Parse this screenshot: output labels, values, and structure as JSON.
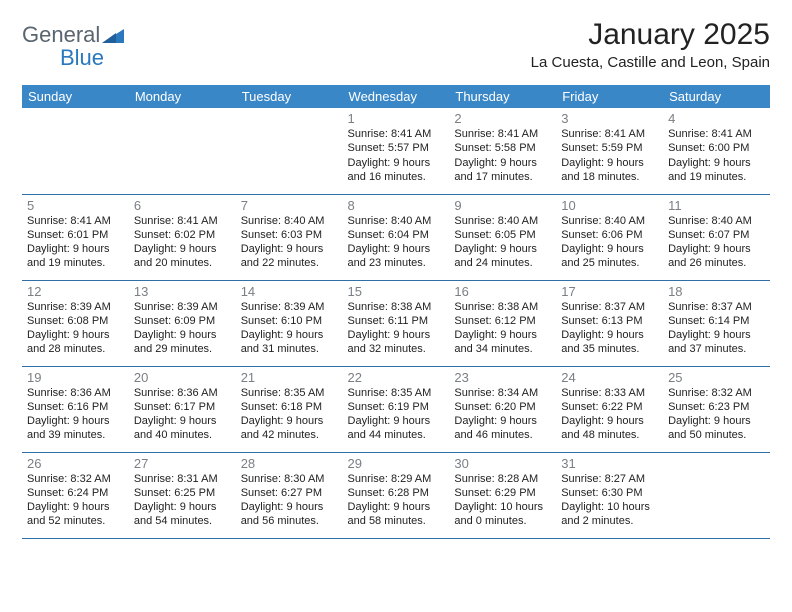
{
  "logo": {
    "part1": "General",
    "part2": "Blue"
  },
  "title": "January 2025",
  "location": "La Cuesta, Castille and Leon, Spain",
  "colors": {
    "header_bg": "#3a87c8",
    "header_fg": "#ffffff",
    "row_border": "#2f6fa8",
    "daynum": "#7a7f85",
    "logo_gray": "#5a6570",
    "logo_blue": "#2a78bd"
  },
  "weekdays": [
    "Sunday",
    "Monday",
    "Tuesday",
    "Wednesday",
    "Thursday",
    "Friday",
    "Saturday"
  ],
  "weeks": [
    [
      null,
      null,
      null,
      {
        "day": "1",
        "sunrise": "8:41 AM",
        "sunset": "5:57 PM",
        "dl1": "Daylight: 9 hours",
        "dl2": "and 16 minutes."
      },
      {
        "day": "2",
        "sunrise": "8:41 AM",
        "sunset": "5:58 PM",
        "dl1": "Daylight: 9 hours",
        "dl2": "and 17 minutes."
      },
      {
        "day": "3",
        "sunrise": "8:41 AM",
        "sunset": "5:59 PM",
        "dl1": "Daylight: 9 hours",
        "dl2": "and 18 minutes."
      },
      {
        "day": "4",
        "sunrise": "8:41 AM",
        "sunset": "6:00 PM",
        "dl1": "Daylight: 9 hours",
        "dl2": "and 19 minutes."
      }
    ],
    [
      {
        "day": "5",
        "sunrise": "8:41 AM",
        "sunset": "6:01 PM",
        "dl1": "Daylight: 9 hours",
        "dl2": "and 19 minutes."
      },
      {
        "day": "6",
        "sunrise": "8:41 AM",
        "sunset": "6:02 PM",
        "dl1": "Daylight: 9 hours",
        "dl2": "and 20 minutes."
      },
      {
        "day": "7",
        "sunrise": "8:40 AM",
        "sunset": "6:03 PM",
        "dl1": "Daylight: 9 hours",
        "dl2": "and 22 minutes."
      },
      {
        "day": "8",
        "sunrise": "8:40 AM",
        "sunset": "6:04 PM",
        "dl1": "Daylight: 9 hours",
        "dl2": "and 23 minutes."
      },
      {
        "day": "9",
        "sunrise": "8:40 AM",
        "sunset": "6:05 PM",
        "dl1": "Daylight: 9 hours",
        "dl2": "and 24 minutes."
      },
      {
        "day": "10",
        "sunrise": "8:40 AM",
        "sunset": "6:06 PM",
        "dl1": "Daylight: 9 hours",
        "dl2": "and 25 minutes."
      },
      {
        "day": "11",
        "sunrise": "8:40 AM",
        "sunset": "6:07 PM",
        "dl1": "Daylight: 9 hours",
        "dl2": "and 26 minutes."
      }
    ],
    [
      {
        "day": "12",
        "sunrise": "8:39 AM",
        "sunset": "6:08 PM",
        "dl1": "Daylight: 9 hours",
        "dl2": "and 28 minutes."
      },
      {
        "day": "13",
        "sunrise": "8:39 AM",
        "sunset": "6:09 PM",
        "dl1": "Daylight: 9 hours",
        "dl2": "and 29 minutes."
      },
      {
        "day": "14",
        "sunrise": "8:39 AM",
        "sunset": "6:10 PM",
        "dl1": "Daylight: 9 hours",
        "dl2": "and 31 minutes."
      },
      {
        "day": "15",
        "sunrise": "8:38 AM",
        "sunset": "6:11 PM",
        "dl1": "Daylight: 9 hours",
        "dl2": "and 32 minutes."
      },
      {
        "day": "16",
        "sunrise": "8:38 AM",
        "sunset": "6:12 PM",
        "dl1": "Daylight: 9 hours",
        "dl2": "and 34 minutes."
      },
      {
        "day": "17",
        "sunrise": "8:37 AM",
        "sunset": "6:13 PM",
        "dl1": "Daylight: 9 hours",
        "dl2": "and 35 minutes."
      },
      {
        "day": "18",
        "sunrise": "8:37 AM",
        "sunset": "6:14 PM",
        "dl1": "Daylight: 9 hours",
        "dl2": "and 37 minutes."
      }
    ],
    [
      {
        "day": "19",
        "sunrise": "8:36 AM",
        "sunset": "6:16 PM",
        "dl1": "Daylight: 9 hours",
        "dl2": "and 39 minutes."
      },
      {
        "day": "20",
        "sunrise": "8:36 AM",
        "sunset": "6:17 PM",
        "dl1": "Daylight: 9 hours",
        "dl2": "and 40 minutes."
      },
      {
        "day": "21",
        "sunrise": "8:35 AM",
        "sunset": "6:18 PM",
        "dl1": "Daylight: 9 hours",
        "dl2": "and 42 minutes."
      },
      {
        "day": "22",
        "sunrise": "8:35 AM",
        "sunset": "6:19 PM",
        "dl1": "Daylight: 9 hours",
        "dl2": "and 44 minutes."
      },
      {
        "day": "23",
        "sunrise": "8:34 AM",
        "sunset": "6:20 PM",
        "dl1": "Daylight: 9 hours",
        "dl2": "and 46 minutes."
      },
      {
        "day": "24",
        "sunrise": "8:33 AM",
        "sunset": "6:22 PM",
        "dl1": "Daylight: 9 hours",
        "dl2": "and 48 minutes."
      },
      {
        "day": "25",
        "sunrise": "8:32 AM",
        "sunset": "6:23 PM",
        "dl1": "Daylight: 9 hours",
        "dl2": "and 50 minutes."
      }
    ],
    [
      {
        "day": "26",
        "sunrise": "8:32 AM",
        "sunset": "6:24 PM",
        "dl1": "Daylight: 9 hours",
        "dl2": "and 52 minutes."
      },
      {
        "day": "27",
        "sunrise": "8:31 AM",
        "sunset": "6:25 PM",
        "dl1": "Daylight: 9 hours",
        "dl2": "and 54 minutes."
      },
      {
        "day": "28",
        "sunrise": "8:30 AM",
        "sunset": "6:27 PM",
        "dl1": "Daylight: 9 hours",
        "dl2": "and 56 minutes."
      },
      {
        "day": "29",
        "sunrise": "8:29 AM",
        "sunset": "6:28 PM",
        "dl1": "Daylight: 9 hours",
        "dl2": "and 58 minutes."
      },
      {
        "day": "30",
        "sunrise": "8:28 AM",
        "sunset": "6:29 PM",
        "dl1": "Daylight: 10 hours",
        "dl2": "and 0 minutes."
      },
      {
        "day": "31",
        "sunrise": "8:27 AM",
        "sunset": "6:30 PM",
        "dl1": "Daylight: 10 hours",
        "dl2": "and 2 minutes."
      },
      null
    ]
  ],
  "labels": {
    "sunrise": "Sunrise: ",
    "sunset": "Sunset: "
  }
}
